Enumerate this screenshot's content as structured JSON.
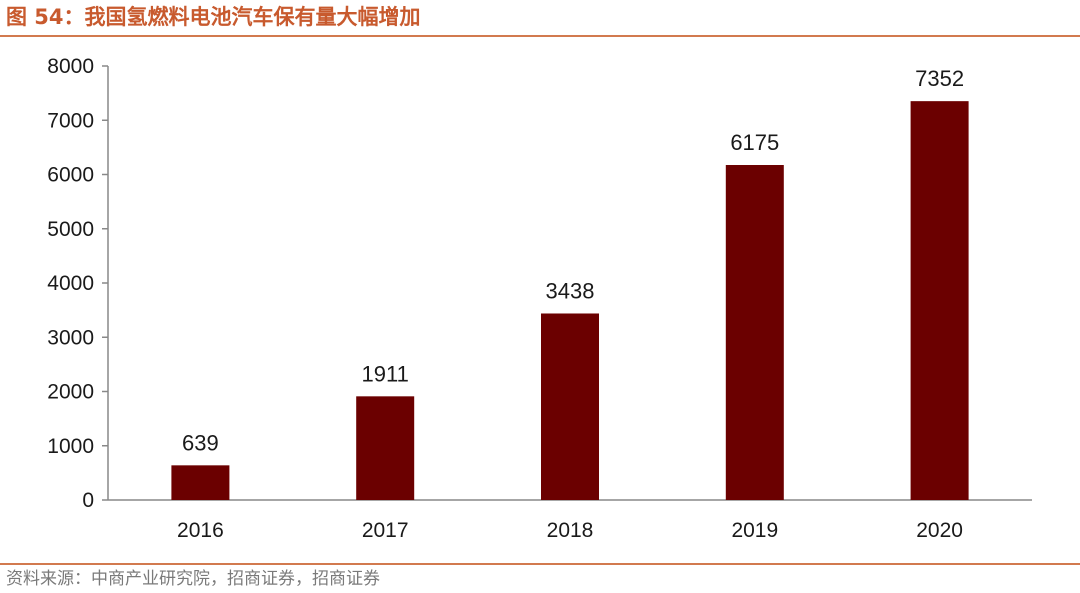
{
  "figure": {
    "title": "图 54：我国氢燃料电池汽车保有量大幅增加",
    "source": "资料来源：中商产业研究院，招商证券，招商证券"
  },
  "colors": {
    "bar": "#6B0000",
    "accent": "#C85A2E",
    "rule": "#D27A4F",
    "axis": "#888888"
  },
  "chart_data": {
    "type": "bar",
    "categories": [
      "2016",
      "2017",
      "2018",
      "2019",
      "2020"
    ],
    "values": [
      639,
      1911,
      3438,
      6175,
      7352
    ],
    "ylim": [
      0,
      8000
    ],
    "yticks": [
      0,
      1000,
      2000,
      3000,
      4000,
      5000,
      6000,
      7000,
      8000
    ],
    "grid": false,
    "legend": "none",
    "data_labels": true,
    "title": "",
    "xlabel": "",
    "ylabel": ""
  }
}
